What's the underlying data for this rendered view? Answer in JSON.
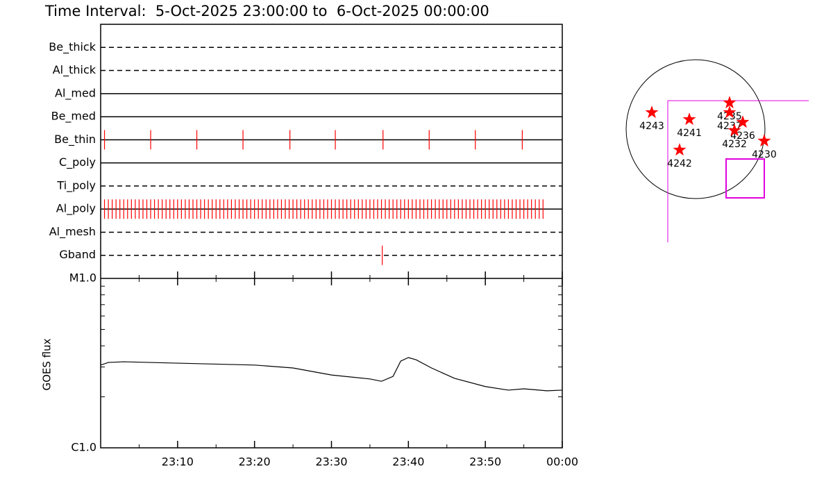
{
  "chart_data": [
    {
      "type": "timeline",
      "title": "Time Interval:  5-Oct-2025 23:00:00 to  6-Oct-2025 00:00:00",
      "xlim": [
        0,
        60
      ],
      "color": "#ff0000",
      "series": [
        {
          "name": "Be_thick",
          "style": "dashed",
          "values": []
        },
        {
          "name": "Al_thick",
          "style": "dashed",
          "values": []
        },
        {
          "name": "Al_med",
          "style": "solid",
          "values": []
        },
        {
          "name": "Be_med",
          "style": "solid",
          "values": []
        },
        {
          "name": "Be_thin",
          "style": "solid",
          "values": [
            0.5,
            6.5,
            12.5,
            18.5,
            24.6,
            30.5,
            36.7,
            42.7,
            48.7,
            54.8
          ]
        },
        {
          "name": "C_poly",
          "style": "solid",
          "values": []
        },
        {
          "name": "Ti_poly",
          "style": "dashed",
          "values": []
        },
        {
          "name": "Al_poly",
          "style": "solid",
          "values": [
            0.5,
            1,
            1.5,
            2,
            2.5,
            3,
            3.5,
            4,
            4.5,
            5,
            5.5,
            6,
            6.5,
            7,
            7.5,
            8,
            8.5,
            9,
            9.5,
            10,
            10.5,
            11,
            11.5,
            12,
            12.5,
            13,
            13.5,
            14,
            14.5,
            15,
            15.5,
            16,
            16.5,
            17,
            17.5,
            18,
            18.5,
            19,
            19.5,
            20,
            20.5,
            21,
            21.5,
            22,
            22.5,
            23,
            23.5,
            24,
            24.5,
            25,
            25.5,
            26,
            26.5,
            27,
            27.5,
            28,
            28.5,
            29,
            29.5,
            30,
            30.5,
            31,
            31.5,
            32,
            32.5,
            33,
            33.5,
            34,
            34.5,
            35,
            35.5,
            36,
            36.5,
            37,
            37.5,
            38,
            38.5,
            39,
            39.5,
            40,
            40.5,
            41,
            41.5,
            42,
            42.5,
            43,
            43.5,
            44,
            44.5,
            45,
            45.5,
            46,
            46.5,
            47,
            47.5,
            48,
            48.5,
            49,
            49.5,
            50,
            50.5,
            51,
            51.5,
            52,
            52.5,
            53,
            53.5,
            54,
            54.5,
            55,
            55.5,
            56,
            56.5,
            57,
            57.5
          ]
        },
        {
          "name": "Al_mesh",
          "style": "dashed",
          "values": []
        },
        {
          "name": "Gband",
          "style": "dashed",
          "values": [
            36.6
          ]
        }
      ]
    },
    {
      "type": "line",
      "ylabel": "GOES flux",
      "log_scale": true,
      "xlim": [
        0,
        60
      ],
      "xticks": [
        {
          "value": 10,
          "label": "23:10"
        },
        {
          "value": 20,
          "label": "23:20"
        },
        {
          "value": 30,
          "label": "23:30"
        },
        {
          "value": 40,
          "label": "23:40"
        },
        {
          "value": 50,
          "label": "23:50"
        },
        {
          "value": 60,
          "label": "00:00"
        }
      ],
      "ylim": [
        1e-06,
        1e-05
      ],
      "yticks": [
        {
          "value": 1e-06,
          "label": "C1.0"
        },
        {
          "value": 1e-05,
          "label": "M1.0"
        }
      ],
      "color": "#000000",
      "x": [
        0,
        1,
        3,
        10,
        20,
        25,
        30,
        35,
        36.5,
        38,
        39,
        40,
        41,
        43,
        46,
        50,
        53,
        55,
        58,
        60
      ],
      "values": [
        3.08e-06,
        3.19e-06,
        3.22e-06,
        3.16e-06,
        3.08e-06,
        2.96e-06,
        2.69e-06,
        2.55e-06,
        2.47e-06,
        2.64e-06,
        3.25e-06,
        3.41e-06,
        3.31e-06,
        2.96e-06,
        2.57e-06,
        2.3e-06,
        2.19e-06,
        2.23e-06,
        2.17e-06,
        2.19e-06
      ]
    },
    {
      "type": "scatter",
      "color": "#ff0000",
      "labels": [
        "4243",
        "4241",
        "4235",
        "4237",
        "4236",
        "4232",
        "4230",
        "4242"
      ],
      "x": [
        -605,
        -86,
        470,
        470,
        653,
        538,
        950,
        -221
      ],
      "values": [
        230,
        134,
        365,
        230,
        96,
        -19,
        -163,
        -288
      ]
    }
  ]
}
